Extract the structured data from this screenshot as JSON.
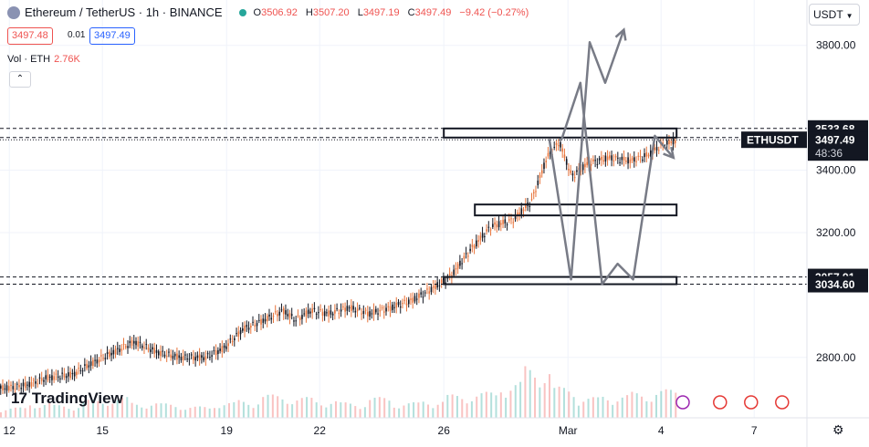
{
  "header": {
    "symbol": "Ethereum / TetherUS · 1h · BINANCE",
    "open_label": "O",
    "open": "3506.92",
    "high_label": "H",
    "high": "3507.20",
    "low_label": "L",
    "low": "3497.19",
    "close_label": "C",
    "close": "3497.49",
    "change": "−9.42 (−0.27%)"
  },
  "bid_price": "3497.48",
  "spread": "0.01",
  "ask_price": "3497.49",
  "volume": {
    "label": "Vol · ETH",
    "value": "2.76K"
  },
  "collapse_glyph": "⌃",
  "currency_button": "USDT",
  "brand": {
    "mark": "17",
    "name": "TradingView"
  },
  "settings_icon": "⚙",
  "chart_data": {
    "type": "candlestick",
    "y_ticks": [
      "3800.00",
      "3400.00",
      "3200.00",
      "2800.00"
    ],
    "y_tick_values": [
      3800,
      3400,
      3200,
      2800
    ],
    "x_ticks": [
      "12",
      "15",
      "19",
      "22",
      "26",
      "Mar",
      "4",
      "7"
    ],
    "x_tick_days": [
      12,
      15,
      19,
      22,
      26,
      30,
      33,
      36
    ],
    "ylim": [
      2700,
      3900
    ],
    "xlim": [
      11.7,
      37.7
    ],
    "price_labels": [
      {
        "text": "3533.68",
        "value": 3533.68
      },
      {
        "text": "3504.55",
        "value": 3504.55
      },
      {
        "text": "3057.91",
        "value": 3057.91
      },
      {
        "text": "3034.60",
        "value": 3034.6
      }
    ],
    "last_price": {
      "text": "3497.49",
      "value": 3497.49,
      "symbol": "ETHUSDT",
      "countdown": "48:36"
    },
    "price_path": [
      [
        11.7,
        2700
      ],
      [
        12.5,
        2710
      ],
      [
        13.2,
        2735
      ],
      [
        14.0,
        2745
      ],
      [
        14.8,
        2790
      ],
      [
        15.6,
        2830
      ],
      [
        16.0,
        2850
      ],
      [
        16.8,
        2815
      ],
      [
        17.5,
        2800
      ],
      [
        18.3,
        2800
      ],
      [
        18.9,
        2830
      ],
      [
        19.5,
        2890
      ],
      [
        20.2,
        2920
      ],
      [
        20.8,
        2950
      ],
      [
        21.2,
        2920
      ],
      [
        21.7,
        2950
      ],
      [
        22.3,
        2940
      ],
      [
        22.9,
        2960
      ],
      [
        23.6,
        2940
      ],
      [
        24.3,
        2960
      ],
      [
        25.0,
        2985
      ],
      [
        25.6,
        3020
      ],
      [
        26.2,
        3060
      ],
      [
        26.8,
        3140
      ],
      [
        27.5,
        3220
      ],
      [
        28.2,
        3240
      ],
      [
        28.8,
        3300
      ],
      [
        29.3,
        3440
      ],
      [
        29.7,
        3490
      ],
      [
        30.1,
        3380
      ],
      [
        30.6,
        3420
      ],
      [
        31.3,
        3440
      ],
      [
        32.0,
        3430
      ],
      [
        32.6,
        3450
      ],
      [
        33.0,
        3480
      ],
      [
        33.5,
        3497.49
      ]
    ],
    "volume_levels": [
      0.2,
      0.3,
      0.25,
      0.35,
      0.4,
      0.3,
      0.28,
      0.22,
      0.3,
      0.35,
      0.45,
      0.4,
      0.35,
      0.3,
      0.4,
      0.3,
      0.35,
      0.45,
      0.5,
      0.7,
      1.0,
      0.6,
      0.4,
      0.45,
      0.5,
      0.55
    ],
    "zones": [
      {
        "x0": 26.0,
        "x1": 33.5,
        "y0": 3504.55,
        "y1": 3533.68
      },
      {
        "x0": 27.0,
        "x1": 33.5,
        "y0": 3255,
        "y1": 3290
      },
      {
        "x0": 26.0,
        "x1": 33.5,
        "y0": 3034.6,
        "y1": 3057.91
      }
    ],
    "projection_paths": [
      [
        [
          29.8,
          3500
        ],
        [
          30.4,
          3680
        ],
        [
          31.1,
          3034.6
        ],
        [
          31.6,
          3100
        ],
        [
          32.1,
          3050
        ],
        [
          32.8,
          3510
        ],
        [
          33.4,
          3440
        ]
      ],
      [
        [
          29.4,
          3500
        ],
        [
          30.1,
          3050
        ],
        [
          30.7,
          3810
        ],
        [
          31.2,
          3680
        ],
        [
          31.8,
          3850
        ]
      ]
    ],
    "event_icons": [
      {
        "day": 33.7,
        "kind": "lightning",
        "color": "#9c27b0"
      },
      {
        "day": 34.9,
        "kind": "flag",
        "color": "#e53935"
      },
      {
        "day": 35.9,
        "kind": "flag",
        "color": "#e53935"
      },
      {
        "day": 36.9,
        "kind": "flag",
        "color": "#e53935"
      },
      {
        "day": 37.9,
        "kind": "flag",
        "color": "#e53935"
      },
      {
        "day": 38.9,
        "kind": "flag",
        "color": "#e53935"
      }
    ],
    "colors": {
      "up": "#26a69a",
      "down": "#ef5350",
      "candle": "#131722",
      "drawing": "#131722",
      "projection": "#787b86",
      "grid": "#f0f3fa"
    }
  }
}
